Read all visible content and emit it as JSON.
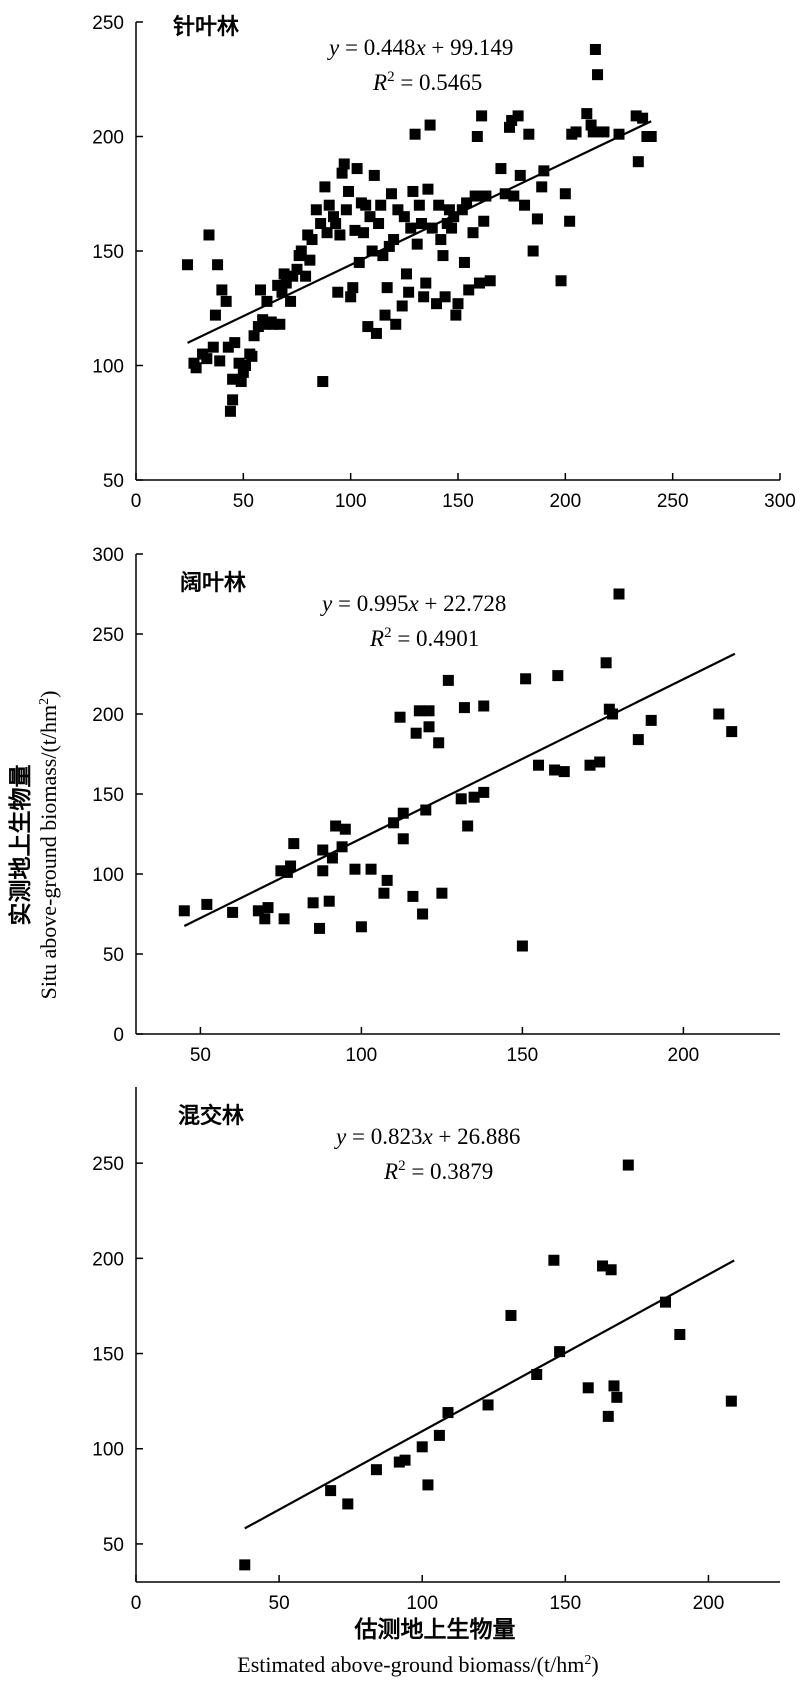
{
  "chart_data": [
    {
      "type": "scatter",
      "title": "针叶林",
      "equation": {
        "y": "y",
        "text": " = 0.448",
        "x": "x",
        "rest": " + 99.149"
      },
      "r2": {
        "r": "R",
        "sup": "2",
        "text": " = 0.5465"
      },
      "fit": {
        "slope": 0.448,
        "intercept": 99.149,
        "x_range": [
          24,
          240
        ]
      },
      "xlim": [
        0,
        300
      ],
      "ylim": [
        50,
        250
      ],
      "xticks": [
        "0",
        "50",
        "100",
        "150",
        "200",
        "250",
        "300"
      ],
      "yticks": [
        "50",
        "100",
        "150",
        "200",
        "250"
      ],
      "points": [
        [
          24,
          144
        ],
        [
          27,
          101
        ],
        [
          28,
          99
        ],
        [
          31,
          105
        ],
        [
          33,
          103
        ],
        [
          34,
          157
        ],
        [
          36,
          108
        ],
        [
          37,
          122
        ],
        [
          38,
          144
        ],
        [
          39,
          102
        ],
        [
          40,
          133
        ],
        [
          42,
          128
        ],
        [
          43,
          108
        ],
        [
          44,
          80
        ],
        [
          45,
          85
        ],
        [
          45,
          94
        ],
        [
          46,
          110
        ],
        [
          48,
          101
        ],
        [
          49,
          93
        ],
        [
          50,
          97
        ],
        [
          51,
          100
        ],
        [
          53,
          105
        ],
        [
          54,
          104
        ],
        [
          55,
          113
        ],
        [
          57,
          117
        ],
        [
          58,
          133
        ],
        [
          59,
          120
        ],
        [
          60,
          118
        ],
        [
          61,
          128
        ],
        [
          63,
          119
        ],
        [
          64,
          118
        ],
        [
          66,
          135
        ],
        [
          67,
          118
        ],
        [
          68,
          132
        ],
        [
          69,
          140
        ],
        [
          70,
          136
        ],
        [
          72,
          128
        ],
        [
          73,
          139
        ],
        [
          75,
          142
        ],
        [
          76,
          148
        ],
        [
          77,
          150
        ],
        [
          79,
          139
        ],
        [
          80,
          157
        ],
        [
          81,
          146
        ],
        [
          82,
          155
        ],
        [
          84,
          168
        ],
        [
          86,
          162
        ],
        [
          87,
          93
        ],
        [
          88,
          178
        ],
        [
          89,
          158
        ],
        [
          90,
          170
        ],
        [
          92,
          165
        ],
        [
          93,
          162
        ],
        [
          94,
          132
        ],
        [
          95,
          157
        ],
        [
          96,
          184
        ],
        [
          97,
          188
        ],
        [
          98,
          168
        ],
        [
          99,
          176
        ],
        [
          100,
          130
        ],
        [
          101,
          134
        ],
        [
          102,
          159
        ],
        [
          103,
          186
        ],
        [
          104,
          145
        ],
        [
          105,
          171
        ],
        [
          106,
          158
        ],
        [
          107,
          170
        ],
        [
          108,
          117
        ],
        [
          109,
          165
        ],
        [
          110,
          150
        ],
        [
          111,
          183
        ],
        [
          112,
          114
        ],
        [
          113,
          162
        ],
        [
          114,
          170
        ],
        [
          115,
          148
        ],
        [
          116,
          122
        ],
        [
          117,
          134
        ],
        [
          118,
          152
        ],
        [
          119,
          175
        ],
        [
          120,
          155
        ],
        [
          121,
          118
        ],
        [
          122,
          168
        ],
        [
          124,
          126
        ],
        [
          125,
          165
        ],
        [
          126,
          140
        ],
        [
          127,
          132
        ],
        [
          128,
          160
        ],
        [
          129,
          176
        ],
        [
          130,
          201
        ],
        [
          131,
          153
        ],
        [
          132,
          170
        ],
        [
          133,
          162
        ],
        [
          134,
          130
        ],
        [
          135,
          136
        ],
        [
          136,
          177
        ],
        [
          137,
          205
        ],
        [
          138,
          160
        ],
        [
          140,
          127
        ],
        [
          141,
          170
        ],
        [
          142,
          155
        ],
        [
          143,
          148
        ],
        [
          144,
          130
        ],
        [
          145,
          162
        ],
        [
          146,
          168
        ],
        [
          147,
          160
        ],
        [
          148,
          165
        ],
        [
          149,
          122
        ],
        [
          150,
          127
        ],
        [
          152,
          168
        ],
        [
          153,
          145
        ],
        [
          154,
          171
        ],
        [
          155,
          133
        ],
        [
          157,
          158
        ],
        [
          158,
          174
        ],
        [
          159,
          200
        ],
        [
          160,
          136
        ],
        [
          161,
          209
        ],
        [
          162,
          163
        ],
        [
          163,
          174
        ],
        [
          165,
          137
        ],
        [
          170,
          186
        ],
        [
          172,
          175
        ],
        [
          174,
          204
        ],
        [
          175,
          207
        ],
        [
          176,
          174
        ],
        [
          178,
          209
        ],
        [
          179,
          183
        ],
        [
          181,
          170
        ],
        [
          183,
          201
        ],
        [
          185,
          150
        ],
        [
          187,
          164
        ],
        [
          189,
          178
        ],
        [
          190,
          185
        ],
        [
          198,
          137
        ],
        [
          200,
          175
        ],
        [
          202,
          163
        ],
        [
          203,
          201
        ],
        [
          205,
          202
        ],
        [
          210,
          210
        ],
        [
          212,
          205
        ],
        [
          213,
          202
        ],
        [
          214,
          238
        ],
        [
          215,
          227
        ],
        [
          218,
          202
        ],
        [
          225,
          201
        ],
        [
          233,
          209
        ],
        [
          234,
          189
        ],
        [
          236,
          208
        ],
        [
          238,
          200
        ],
        [
          240,
          200
        ]
      ]
    },
    {
      "type": "scatter",
      "title": "阔叶林",
      "equation": {
        "y": "y",
        "text": " = 0.995",
        "x": "x",
        "rest": " + 22.728"
      },
      "r2": {
        "r": "R",
        "sup": "2",
        "text": " = 0.4901"
      },
      "fit": {
        "slope": 0.995,
        "intercept": 22.728,
        "x_range": [
          45,
          216
        ]
      },
      "xlim": [
        30,
        230
      ],
      "ylim": [
        0,
        300
      ],
      "xticks": [
        "50",
        "100",
        "150",
        "200"
      ],
      "yticks": [
        "0",
        "50",
        "100",
        "150",
        "200",
        "250",
        "300"
      ],
      "points": [
        [
          45,
          77
        ],
        [
          52,
          81
        ],
        [
          60,
          76
        ],
        [
          68,
          77
        ],
        [
          70,
          72
        ],
        [
          71,
          79
        ],
        [
          75,
          102
        ],
        [
          76,
          72
        ],
        [
          77,
          101
        ],
        [
          78,
          105
        ],
        [
          79,
          119
        ],
        [
          85,
          82
        ],
        [
          87,
          66
        ],
        [
          88,
          102
        ],
        [
          88,
          115
        ],
        [
          90,
          83
        ],
        [
          91,
          110
        ],
        [
          92,
          130
        ],
        [
          94,
          117
        ],
        [
          95,
          128
        ],
        [
          98,
          103
        ],
        [
          100,
          67
        ],
        [
          103,
          103
        ],
        [
          107,
          88
        ],
        [
          108,
          96
        ],
        [
          110,
          132
        ],
        [
          112,
          198
        ],
        [
          113,
          122
        ],
        [
          113,
          138
        ],
        [
          116,
          86
        ],
        [
          117,
          188
        ],
        [
          118,
          202
        ],
        [
          119,
          75
        ],
        [
          120,
          140
        ],
        [
          121,
          192
        ],
        [
          121,
          202
        ],
        [
          124,
          182
        ],
        [
          125,
          88
        ],
        [
          127,
          221
        ],
        [
          131,
          147
        ],
        [
          132,
          204
        ],
        [
          133,
          130
        ],
        [
          135,
          148
        ],
        [
          138,
          205
        ],
        [
          138,
          151
        ],
        [
          150,
          55
        ],
        [
          151,
          222
        ],
        [
          155,
          168
        ],
        [
          160,
          165
        ],
        [
          161,
          224
        ],
        [
          163,
          164
        ],
        [
          171,
          168
        ],
        [
          174,
          170
        ],
        [
          176,
          232
        ],
        [
          177,
          203
        ],
        [
          178,
          200
        ],
        [
          180,
          275
        ],
        [
          186,
          184
        ],
        [
          190,
          196
        ],
        [
          211,
          200
        ],
        [
          215,
          189
        ]
      ]
    },
    {
      "type": "scatter",
      "title": "混交林",
      "equation": {
        "y": "y",
        "text": " = 0.823",
        "x": "x",
        "rest": " + 26.886"
      },
      "r2": {
        "r": "R",
        "sup": "2",
        "text": " = 0.3879"
      },
      "fit": {
        "slope": 0.823,
        "intercept": 26.886,
        "x_range": [
          38,
          209
        ]
      },
      "xlim": [
        0,
        225
      ],
      "ylim": [
        30,
        290
      ],
      "xticks": [
        "0",
        "50",
        "100",
        "150",
        "200"
      ],
      "yticks": [
        "50",
        "100",
        "150",
        "200",
        "250"
      ],
      "points": [
        [
          38,
          39
        ],
        [
          68,
          78
        ],
        [
          74,
          71
        ],
        [
          84,
          89
        ],
        [
          92,
          93
        ],
        [
          94,
          94
        ],
        [
          100,
          101
        ],
        [
          102,
          81
        ],
        [
          106,
          107
        ],
        [
          109,
          119
        ],
        [
          123,
          123
        ],
        [
          131,
          170
        ],
        [
          140,
          139
        ],
        [
          146,
          199
        ],
        [
          148,
          151
        ],
        [
          158,
          132
        ],
        [
          163,
          196
        ],
        [
          165,
          117
        ],
        [
          166,
          194
        ],
        [
          167,
          133
        ],
        [
          168,
          127
        ],
        [
          172,
          249
        ],
        [
          185,
          177
        ],
        [
          190,
          160
        ],
        [
          208,
          125
        ]
      ]
    }
  ],
  "ylabel": {
    "cn": "实测地上生物量",
    "en_prefix": "Situ above-ground biomass/(t/hm",
    "en_sup": "2",
    "en_suffix": ")"
  },
  "xlabel": {
    "cn": "估测地上生物量",
    "en_prefix": "Estimated above-ground biomass/(t/hm",
    "en_sup": "2",
    "en_suffix": ")"
  }
}
